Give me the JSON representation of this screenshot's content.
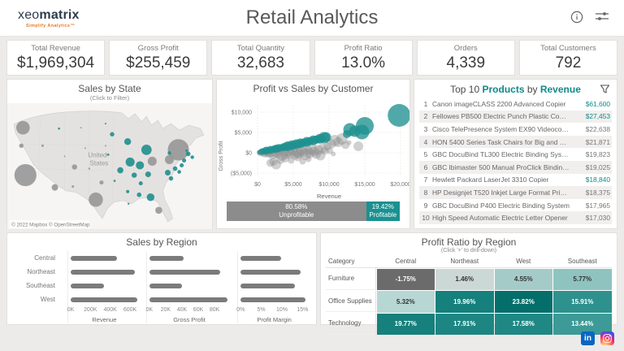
{
  "header": {
    "logo_prefix": "xeo",
    "logo_bold": "matrix",
    "logo_tagline": "Simplify Analytics™",
    "title": "Retail Analytics"
  },
  "kpis": [
    {
      "label": "Total Revenue",
      "value": "$1,969,304"
    },
    {
      "label": "Gross Profit",
      "value": "$255,459"
    },
    {
      "label": "Total Quantity",
      "value": "32,683"
    },
    {
      "label": "Profit Ratio",
      "value": "13.0%"
    },
    {
      "label": "Orders",
      "value": "4,339"
    },
    {
      "label": "Total Customers",
      "value": "792"
    }
  ],
  "colors": {
    "teal": "#1f9190",
    "gray": "#8f8f8f",
    "accent_text": "#0f8a88",
    "bar_gray": "#7b7b7b"
  },
  "chart_data": {
    "map": {
      "type": "bubble-map",
      "title": "Sales by State",
      "subtitle": "(Click to Filter)",
      "country_label_line1": "United",
      "country_label_line2": "States",
      "attribution": "© 2022 Mapbox © OpenStreetMap",
      "bubbles_gray": [
        [
          19,
          30,
          8.3
        ],
        [
          17,
          52,
          2.7
        ],
        [
          22,
          88,
          13.5
        ],
        [
          58,
          103,
          4
        ],
        [
          82,
          78,
          3.2
        ],
        [
          108,
          118,
          8.7
        ],
        [
          43,
          52,
          1.5
        ],
        [
          80,
          102,
          1.5
        ],
        [
          115,
          97,
          2.5
        ],
        [
          198,
          69,
          5.5
        ],
        [
          209,
          57,
          13
        ],
        [
          177,
          71,
          5.5
        ],
        [
          185,
          131,
          4.3
        ],
        [
          95,
          55,
          1
        ],
        [
          70,
          65,
          1
        ],
        [
          100,
          80,
          1.2
        ],
        [
          120,
          52,
          1
        ],
        [
          90,
          30,
          1
        ]
      ],
      "bubbles_teal": [
        [
          63,
          31,
          1.3
        ],
        [
          128,
          38,
          2.7
        ],
        [
          147,
          47,
          4.2
        ],
        [
          170,
          57,
          6.3
        ],
        [
          150,
          72,
          5.5
        ],
        [
          162,
          76,
          5
        ],
        [
          138,
          82,
          3.8
        ],
        [
          155,
          88,
          3.2
        ],
        [
          172,
          87,
          3.5
        ],
        [
          163,
          98,
          2.5
        ],
        [
          147,
          108,
          2
        ],
        [
          161,
          112,
          2.8
        ],
        [
          175,
          115,
          4.7
        ],
        [
          196,
          85,
          3.5
        ],
        [
          200,
          92,
          2.7
        ],
        [
          205,
          80,
          2.8
        ],
        [
          210,
          84,
          2.3
        ],
        [
          213,
          76,
          2.5
        ],
        [
          221,
          62,
          2.8
        ],
        [
          226,
          66,
          2.2
        ],
        [
          198,
          61,
          2.2
        ],
        [
          123,
          63,
          1.5
        ],
        [
          131,
          95,
          1.3
        ],
        [
          120,
          25,
          1
        ],
        [
          148,
          123,
          1.2
        ],
        [
          216,
          70,
          2.5
        ],
        [
          219,
          58,
          1.5
        ]
      ]
    },
    "scatter": {
      "type": "scatter",
      "title": "Profit vs Sales by Customer",
      "xlabel": "Revenue",
      "ylabel": "Gross Profit",
      "xticks": [
        {
          "label": "$0",
          "v": 0
        },
        {
          "label": "$5,000",
          "v": 5000
        },
        {
          "label": "$10,000",
          "v": 10000
        },
        {
          "label": "$15,000",
          "v": 15000
        },
        {
          "label": "$20,000",
          "v": 20000
        }
      ],
      "yticks": [
        {
          "label": "$10,000",
          "v": 10000
        },
        {
          "label": "$5,000",
          "v": 5000
        },
        {
          "label": "$0",
          "v": 0
        },
        {
          "label": "($5,000)",
          "v": -5000
        }
      ],
      "xlim": [
        0,
        21000
      ],
      "ylim": [
        -6500,
        11000
      ],
      "series": [
        {
          "name": "Unprofitable",
          "color": "#8f8f8f",
          "points": [
            [
              200,
              50,
              3
            ],
            [
              400,
              -60,
              4
            ],
            [
              700,
              100,
              5
            ],
            [
              1000,
              -150,
              5
            ],
            [
              1300,
              200,
              6
            ],
            [
              1600,
              -300,
              5
            ],
            [
              1900,
              100,
              6
            ],
            [
              2200,
              -450,
              6
            ],
            [
              2500,
              300,
              7
            ],
            [
              2800,
              -200,
              6
            ],
            [
              3100,
              400,
              6
            ],
            [
              3400,
              -600,
              7
            ],
            [
              3700,
              200,
              6
            ],
            [
              4000,
              -350,
              6
            ],
            [
              4300,
              500,
              7
            ],
            [
              4600,
              -150,
              6
            ],
            [
              4900,
              700,
              7
            ],
            [
              5200,
              -500,
              6
            ],
            [
              5500,
              300,
              7
            ],
            [
              5800,
              -250,
              6
            ],
            [
              6100,
              800,
              7
            ],
            [
              6400,
              100,
              6
            ],
            [
              6700,
              -400,
              7
            ],
            [
              7000,
              600,
              6
            ],
            [
              7300,
              -100,
              6
            ],
            [
              7600,
              900,
              7
            ],
            [
              7900,
              300,
              6
            ],
            [
              8200,
              -300,
              6
            ],
            [
              8500,
              700,
              6
            ],
            [
              8800,
              -700,
              6
            ],
            [
              9100,
              1100,
              6
            ],
            [
              9400,
              500,
              5
            ],
            [
              1800,
              -2500,
              5
            ],
            [
              2200,
              -2200,
              5
            ],
            [
              2600,
              -2900,
              6
            ],
            [
              3200,
              -1800,
              5
            ],
            [
              3900,
              -1400,
              5
            ],
            [
              4700,
              -1900,
              4
            ],
            [
              5600,
              -1100,
              5
            ],
            [
              6300,
              -2100,
              4
            ],
            [
              7100,
              -1500,
              4
            ],
            [
              9800,
              1600,
              5
            ],
            [
              10300,
              2200,
              6
            ],
            [
              10800,
              3000,
              7
            ],
            [
              11300,
              2600,
              6
            ],
            [
              11800,
              3400,
              7
            ],
            [
              12300,
              1900,
              5
            ],
            [
              14100,
              1600,
              6
            ],
            [
              10100,
              500,
              4
            ],
            [
              10600,
              -300,
              3
            ],
            [
              12800,
              2500,
              3
            ]
          ]
        },
        {
          "name": "Profitable",
          "color": "#1f9190",
          "points": [
            [
              300,
              150,
              3
            ],
            [
              600,
              280,
              4
            ],
            [
              900,
              380,
              4
            ],
            [
              1200,
              500,
              5
            ],
            [
              1500,
              620,
              4
            ],
            [
              1800,
              700,
              5
            ],
            [
              2100,
              820,
              4
            ],
            [
              2400,
              900,
              5
            ],
            [
              2700,
              1020,
              5
            ],
            [
              3000,
              1150,
              5
            ],
            [
              3300,
              1250,
              4
            ],
            [
              3600,
              1350,
              5
            ],
            [
              3900,
              1500,
              5
            ],
            [
              4200,
              1600,
              6
            ],
            [
              4500,
              1720,
              5
            ],
            [
              4800,
              1850,
              6
            ],
            [
              5100,
              1950,
              5
            ],
            [
              5400,
              2100,
              6
            ],
            [
              5700,
              2200,
              5
            ],
            [
              6000,
              2320,
              6
            ],
            [
              6300,
              2450,
              5
            ],
            [
              6600,
              2550,
              5
            ],
            [
              6900,
              2700,
              6
            ],
            [
              7200,
              2800,
              5
            ],
            [
              7500,
              2950,
              5
            ],
            [
              7800,
              3050,
              6
            ],
            [
              8100,
              3200,
              5
            ],
            [
              8400,
              3300,
              5
            ],
            [
              8700,
              3450,
              6
            ],
            [
              9000,
              3550,
              5
            ],
            [
              9300,
              3700,
              7
            ],
            [
              9600,
              3850,
              6
            ],
            [
              12500,
              4600,
              5
            ],
            [
              12900,
              5700,
              8
            ],
            [
              13600,
              5300,
              7
            ],
            [
              14600,
              5100,
              9
            ],
            [
              15000,
              6600,
              11
            ],
            [
              19800,
              9200,
              14
            ]
          ]
        }
      ],
      "footer_bar": {
        "unprofitable_pct": "80.58%",
        "unprofitable_label": "Unprofitable",
        "unprofitable_color": "#8c8c8c",
        "profitable_pct": "19.42%",
        "profitable_label": "Profitable",
        "profitable_color": "#1a9190"
      }
    },
    "products_table": {
      "type": "table",
      "title_prefix": "Top 10 ",
      "title_products": "Products",
      "title_by": " by ",
      "title_revenue": "Revenue",
      "rows": [
        {
          "rank": "1",
          "name": "Canon imageCLASS 2200 Advanced Copier",
          "value": "$61,600",
          "highlight": true
        },
        {
          "rank": "2",
          "name": "Fellowes PB500 Electric Punch Plastic Comb Bindi..",
          "value": "$27,453",
          "highlight": true
        },
        {
          "rank": "3",
          "name": "Cisco TelePresence System EX90 Videoconferenci..",
          "value": "$22,638",
          "highlight": false
        },
        {
          "rank": "4",
          "name": "HON 5400 Series Task Chairs for Big and Tall",
          "value": "$21,871",
          "highlight": false
        },
        {
          "rank": "5",
          "name": "GBC DocuBind TL300 Electric Binding System",
          "value": "$19,823",
          "highlight": false
        },
        {
          "rank": "6",
          "name": "GBC Ibimaster 500 Manual ProClick Binding System",
          "value": "$19,025",
          "highlight": false
        },
        {
          "rank": "7",
          "name": "Hewlett Packard LaserJet 3310 Copier",
          "value": "$18,840",
          "highlight": true
        },
        {
          "rank": "8",
          "name": "HP Designjet T520 Inkjet Large Format Printer - 2..",
          "value": "$18,375",
          "highlight": false
        },
        {
          "rank": "9",
          "name": "GBC DocuBind P400 Electric Binding System",
          "value": "$17,965",
          "highlight": false
        },
        {
          "rank": "10",
          "name": "High Speed Automatic Electric Letter Opener",
          "value": "$17,030",
          "highlight": false
        }
      ]
    },
    "region_bars": {
      "type": "bar",
      "title": "Sales by Region",
      "categories": [
        "Central",
        "Northeast",
        "Southeast",
        "West"
      ],
      "panels": [
        {
          "xlabel": "Revenue",
          "max": 680,
          "values": [
            465,
            650,
            340,
            670
          ],
          "ticks": [
            {
              "label": "0K",
              "v": 0
            },
            {
              "label": "200K",
              "v": 200
            },
            {
              "label": "400K",
              "v": 400
            },
            {
              "label": "600K",
              "v": 600
            }
          ]
        },
        {
          "xlabel": "Gross Profit",
          "max": 98,
          "values": [
            42,
            87,
            40,
            96
          ],
          "ticks": [
            {
              "label": "0K",
              "v": 0
            },
            {
              "label": "20K",
              "v": 20
            },
            {
              "label": "40K",
              "v": 40
            },
            {
              "label": "60K",
              "v": 60
            },
            {
              "label": "80K",
              "v": 80
            }
          ]
        },
        {
          "xlabel": "Profit Margin",
          "max": 16.3,
          "values": [
            9.9,
            14.5,
            13.1,
            15.8
          ],
          "ticks": [
            {
              "label": "0%",
              "v": 0
            },
            {
              "label": "5%",
              "v": 5
            },
            {
              "label": "10%",
              "v": 10
            },
            {
              "label": "15%",
              "v": 15
            }
          ]
        }
      ]
    },
    "heatmap": {
      "type": "heatmap",
      "title": "Profit Ratio by Region",
      "subtitle": "(Click '+' to drill-down)",
      "columns": [
        "Category",
        "Central",
        "Northeast",
        "West",
        "Southeast"
      ],
      "rows": [
        {
          "category": "Furniture",
          "cells": [
            {
              "text": "-1.75%",
              "bg": "#6b6b6b",
              "fg": "#ffffff"
            },
            {
              "text": "1.46%",
              "bg": "#ccd8d5",
              "fg": "#333333"
            },
            {
              "text": "4.55%",
              "bg": "#a5cbc8",
              "fg": "#333333"
            },
            {
              "text": "5.77%",
              "bg": "#8fc3c0",
              "fg": "#333333"
            }
          ]
        },
        {
          "category": "Office Supplies",
          "cells": [
            {
              "text": "5.32%",
              "bg": "#b7d7d4",
              "fg": "#333333"
            },
            {
              "text": "19.96%",
              "bg": "#15807c",
              "fg": "#ffffff"
            },
            {
              "text": "23.82%",
              "bg": "#046e6b",
              "fg": "#ffffff"
            },
            {
              "text": "15.91%",
              "bg": "#2f918d",
              "fg": "#ffffff"
            }
          ]
        },
        {
          "category": "Technology",
          "cells": [
            {
              "text": "19.77%",
              "bg": "#15807c",
              "fg": "#ffffff"
            },
            {
              "text": "17.91%",
              "bg": "#1d8682",
              "fg": "#ffffff"
            },
            {
              "text": "17.58%",
              "bg": "#1f8884",
              "fg": "#ffffff"
            },
            {
              "text": "13.44%",
              "bg": "#3d9a96",
              "fg": "#ffffff"
            }
          ]
        }
      ]
    }
  },
  "social": {
    "linkedin": "in"
  }
}
